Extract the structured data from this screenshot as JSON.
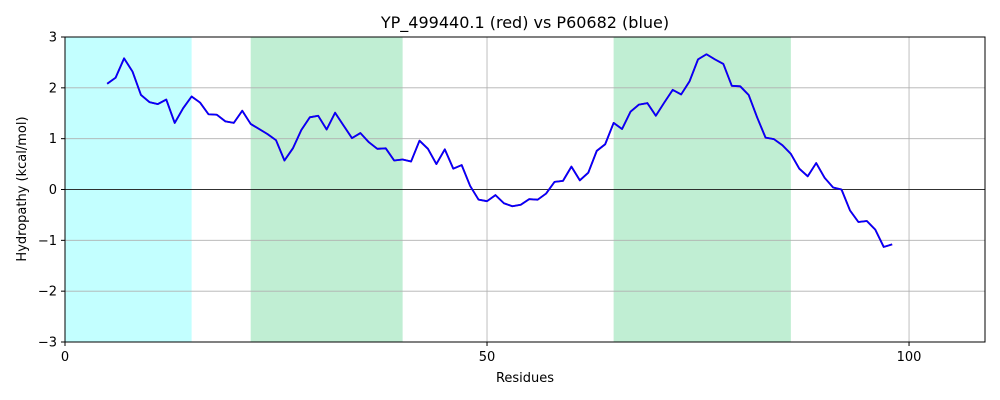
{
  "chart_data": {
    "type": "line",
    "title": "YP_499440.1 (red) vs P60682 (blue)",
    "xlabel": "Residues",
    "ylabel": "Hydropathy (kcal/mol)",
    "xlim": [
      0,
      109
    ],
    "ylim": [
      -3,
      3
    ],
    "xticks": [
      0,
      50,
      100
    ],
    "yticks": [
      -3,
      -2,
      -1,
      0,
      1,
      2,
      3
    ],
    "grid": true,
    "zero_line": true,
    "regions": [
      {
        "start": 0,
        "end": 15,
        "color": "#c3ffff"
      },
      {
        "start": 22,
        "end": 40,
        "color": "#c0eed3"
      },
      {
        "start": 65,
        "end": 86,
        "color": "#c0eed3"
      }
    ],
    "series": [
      {
        "color": "#ff0000",
        "x": [
          5,
          6,
          7,
          8,
          9,
          10,
          11,
          12,
          13,
          14,
          15,
          16,
          17,
          18,
          19,
          20,
          21,
          22,
          23,
          24,
          25,
          26,
          27,
          28,
          29,
          30,
          31,
          32,
          33,
          34,
          35,
          36,
          37,
          38,
          39,
          40,
          41,
          42,
          43,
          44,
          45,
          46,
          47,
          48,
          49,
          50,
          51,
          52,
          53,
          54,
          55,
          56,
          57,
          58,
          59,
          60,
          61,
          62,
          63,
          64,
          65,
          66,
          67,
          68,
          69,
          70,
          71,
          72,
          73,
          74,
          75,
          76,
          77,
          78,
          79,
          80,
          81,
          82,
          83,
          84,
          85,
          86,
          87,
          88,
          89,
          90,
          91,
          92,
          93,
          94,
          95,
          96,
          97,
          98
        ],
        "y": [
          2.08,
          2.2,
          2.58,
          2.32,
          1.86,
          1.72,
          1.68,
          1.77,
          1.31,
          1.6,
          1.83,
          1.71,
          1.48,
          1.47,
          1.34,
          1.31,
          1.55,
          1.29,
          1.19,
          1.09,
          0.97,
          0.57,
          0.81,
          1.17,
          1.42,
          1.45,
          1.18,
          1.51,
          1.26,
          1.01,
          1.11,
          0.93,
          0.8,
          0.81,
          0.57,
          0.59,
          0.55,
          0.96,
          0.8,
          0.5,
          0.79,
          0.41,
          0.48,
          0.07,
          -0.2,
          -0.23,
          -0.11,
          -0.27,
          -0.33,
          -0.3,
          -0.19,
          -0.2,
          -0.08,
          0.15,
          0.17,
          0.45,
          0.18,
          0.33,
          0.76,
          0.89,
          1.31,
          1.19,
          1.53,
          1.67,
          1.7,
          1.45,
          1.71,
          1.96,
          1.87,
          2.13,
          2.56,
          2.66,
          2.56,
          2.47,
          2.04,
          2.03,
          1.86,
          1.42,
          1.02,
          0.99,
          0.87,
          0.7,
          0.41,
          0.26,
          0.52,
          0.23,
          0.04,
          0.0,
          -0.41,
          -0.64,
          -0.62,
          -0.79,
          -1.13,
          -1.08
        ]
      },
      {
        "color": "#0000ff",
        "x": [
          5,
          6,
          7,
          8,
          9,
          10,
          11,
          12,
          13,
          14,
          15,
          16,
          17,
          18,
          19,
          20,
          21,
          22,
          23,
          24,
          25,
          26,
          27,
          28,
          29,
          30,
          31,
          32,
          33,
          34,
          35,
          36,
          37,
          38,
          39,
          40,
          41,
          42,
          43,
          44,
          45,
          46,
          47,
          48,
          49,
          50,
          51,
          52,
          53,
          54,
          55,
          56,
          57,
          58,
          59,
          60,
          61,
          62,
          63,
          64,
          65,
          66,
          67,
          68,
          69,
          70,
          71,
          72,
          73,
          74,
          75,
          76,
          77,
          78,
          79,
          80,
          81,
          82,
          83,
          84,
          85,
          86,
          87,
          88,
          89,
          90,
          91,
          92,
          93,
          94,
          95,
          96,
          97,
          98
        ],
        "y": [
          2.08,
          2.2,
          2.58,
          2.32,
          1.86,
          1.72,
          1.68,
          1.77,
          1.31,
          1.6,
          1.83,
          1.71,
          1.48,
          1.47,
          1.34,
          1.31,
          1.55,
          1.29,
          1.19,
          1.09,
          0.97,
          0.57,
          0.81,
          1.17,
          1.42,
          1.45,
          1.18,
          1.51,
          1.26,
          1.01,
          1.11,
          0.93,
          0.8,
          0.81,
          0.57,
          0.59,
          0.55,
          0.96,
          0.8,
          0.5,
          0.79,
          0.41,
          0.48,
          0.07,
          -0.2,
          -0.23,
          -0.11,
          -0.27,
          -0.33,
          -0.3,
          -0.19,
          -0.2,
          -0.08,
          0.15,
          0.17,
          0.45,
          0.18,
          0.33,
          0.76,
          0.89,
          1.31,
          1.19,
          1.53,
          1.67,
          1.7,
          1.45,
          1.71,
          1.96,
          1.87,
          2.13,
          2.56,
          2.66,
          2.56,
          2.47,
          2.04,
          2.03,
          1.86,
          1.42,
          1.02,
          0.99,
          0.87,
          0.7,
          0.41,
          0.26,
          0.52,
          0.23,
          0.04,
          0.0,
          -0.41,
          -0.64,
          -0.62,
          -0.79,
          -1.13,
          -1.08
        ]
      }
    ]
  }
}
